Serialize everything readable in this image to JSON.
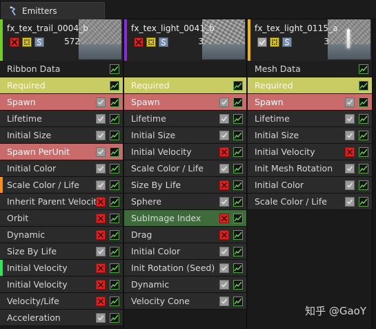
{
  "tab": {
    "label": "Emitters"
  },
  "colors": {
    "required_row": "#c9cb63",
    "spawn_row": "#c96b6b",
    "subimage_row": "#3f6a3c",
    "disabled_check": "#e02020",
    "enabled_check": "#9a9a9a",
    "graph_border": "#58a448"
  },
  "emitters": [
    {
      "name": "fx_tex_trail_0004_b",
      "count": "572",
      "header_icons": [
        "disable-x-icon",
        "solo-icon",
        "s-icon"
      ],
      "accent": "#6fce22",
      "modules": [
        {
          "label": "Ribbon Data",
          "type": "section",
          "check": null
        },
        {
          "label": "Required",
          "type": "required",
          "check": null
        },
        {
          "label": "Spawn",
          "type": "spawn",
          "check": "on"
        },
        {
          "label": "Lifetime",
          "type": "normal",
          "check": "on"
        },
        {
          "label": "Initial Size",
          "type": "normal",
          "check": "on"
        },
        {
          "label": "Spawn PerUnit",
          "type": "spawn",
          "check": "on"
        },
        {
          "label": "Initial Color",
          "type": "normal",
          "check": "on"
        },
        {
          "label": "Scale Color / Life",
          "type": "normal",
          "check": "on",
          "stripe": "#ff8c1a"
        },
        {
          "label": "Inherit Parent Velocity",
          "type": "normal",
          "check": "off"
        },
        {
          "label": "Orbit",
          "type": "normal",
          "check": "off"
        },
        {
          "label": "Dynamic",
          "type": "normal",
          "check": "off"
        },
        {
          "label": "Size By Life",
          "type": "normal",
          "check": "on"
        },
        {
          "label": "Initial Velocity",
          "type": "normal",
          "check": "off",
          "stripe": "#2ee85a"
        },
        {
          "label": "Initial Velocity",
          "type": "normal",
          "check": "off"
        },
        {
          "label": "Velocity/Life",
          "type": "normal",
          "check": "off"
        },
        {
          "label": "Acceleration",
          "type": "normal",
          "check": "on"
        }
      ]
    },
    {
      "name": "fx_tex_light_0041_b",
      "count": "3",
      "header_icons": [
        "disable-x-icon",
        "solo-icon",
        "s-icon"
      ],
      "accent": "#8a2be2",
      "modules": [
        {
          "label": "",
          "type": "section",
          "check": null,
          "hide_graph": true
        },
        {
          "label": "Required",
          "type": "required",
          "check": null
        },
        {
          "label": "Spawn",
          "type": "spawn",
          "check": "on"
        },
        {
          "label": "Lifetime",
          "type": "normal",
          "check": "on"
        },
        {
          "label": "Initial Size",
          "type": "normal",
          "check": "on"
        },
        {
          "label": "Initial Velocity",
          "type": "normal",
          "check": "off"
        },
        {
          "label": "Scale Color / Life",
          "type": "normal",
          "check": "on"
        },
        {
          "label": "Size By Life",
          "type": "normal",
          "check": "off"
        },
        {
          "label": "Sphere",
          "type": "normal",
          "check": "on"
        },
        {
          "label": "SubImage Index",
          "type": "green",
          "check": "off"
        },
        {
          "label": "Drag",
          "type": "normal",
          "check": "off"
        },
        {
          "label": "Initial Color",
          "type": "normal",
          "check": "on"
        },
        {
          "label": "Init Rotation (Seed)",
          "type": "normal",
          "check": "on"
        },
        {
          "label": "Dynamic",
          "type": "normal",
          "check": "on"
        },
        {
          "label": "Velocity Cone",
          "type": "normal",
          "check": "on"
        }
      ]
    },
    {
      "name": "fx_tex_light_0115_a",
      "count": "3",
      "header_icons": [
        "check-icon",
        "solo-icon",
        "s-icon"
      ],
      "accent": "#f0b400",
      "modules": [
        {
          "label": "Mesh Data",
          "type": "section",
          "check": null
        },
        {
          "label": "Required",
          "type": "required",
          "check": null
        },
        {
          "label": "Spawn",
          "type": "spawn",
          "check": "on"
        },
        {
          "label": "Lifetime",
          "type": "normal",
          "check": "on"
        },
        {
          "label": "Initial Size",
          "type": "normal",
          "check": "on"
        },
        {
          "label": "Initial Velocity",
          "type": "normal",
          "check": "off"
        },
        {
          "label": "Init Mesh Rotation",
          "type": "normal",
          "check": "on"
        },
        {
          "label": "Initial Color",
          "type": "normal",
          "check": "on"
        },
        {
          "label": "Scale Color / Life",
          "type": "normal",
          "check": "on"
        }
      ]
    }
  ],
  "watermark": "知乎 @GaoY"
}
